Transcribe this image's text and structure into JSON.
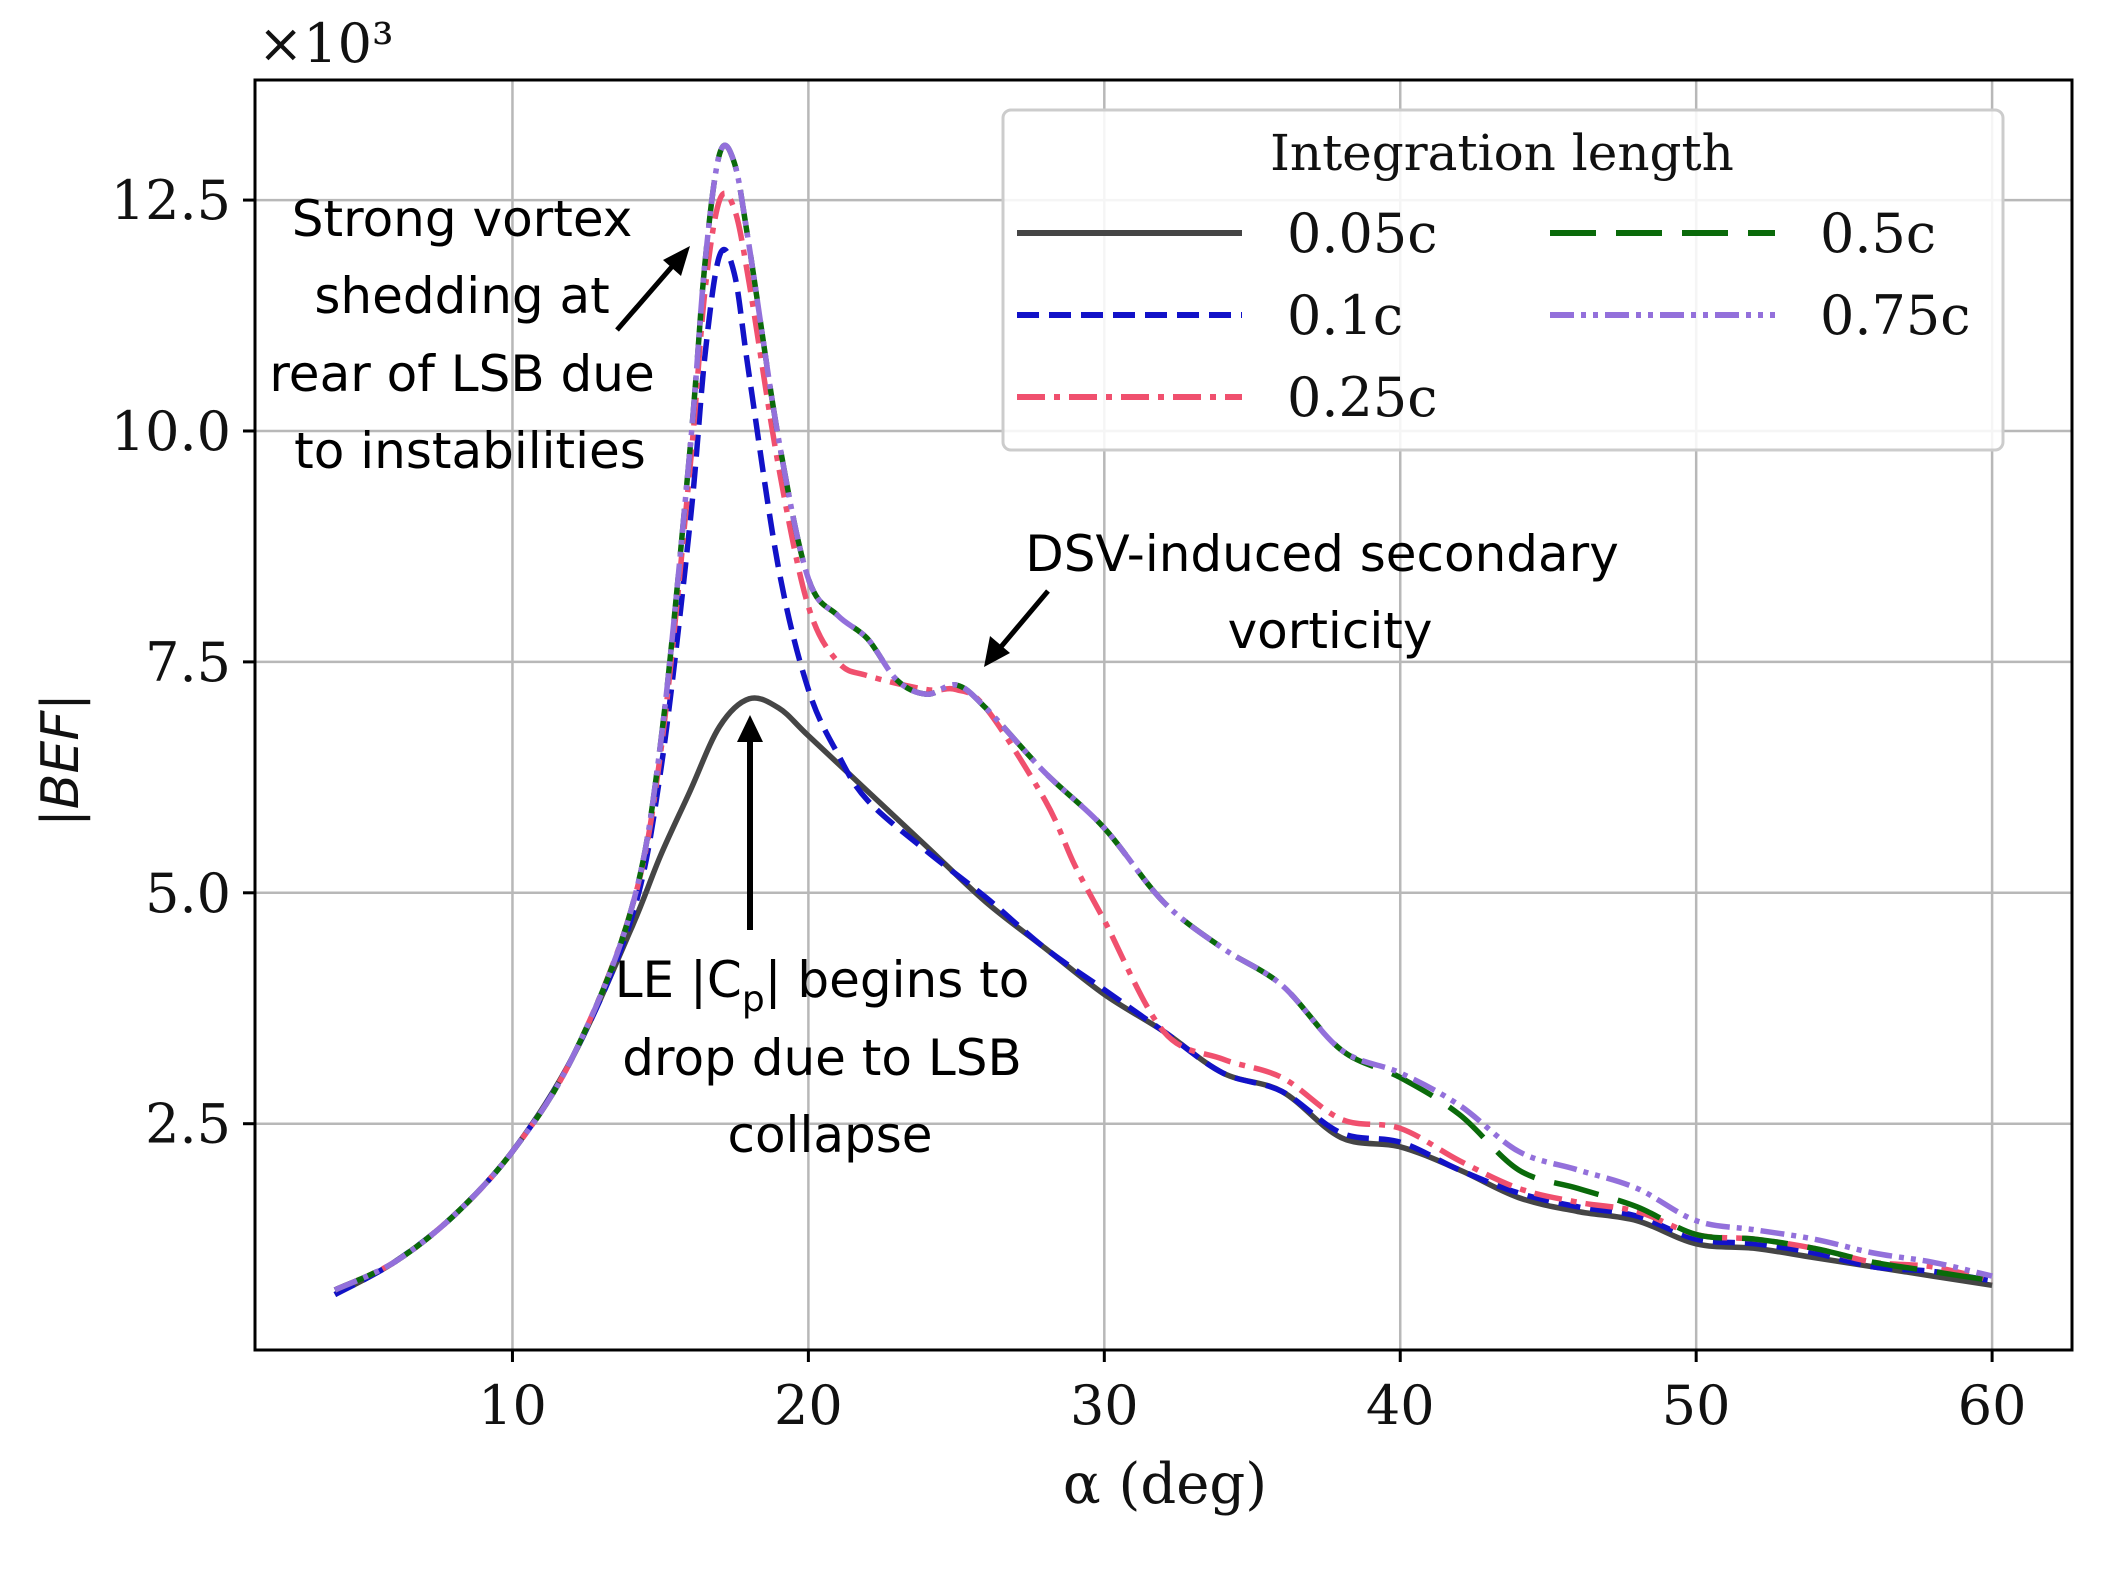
{
  "chart_data": {
    "type": "line",
    "xlabel": "α (deg)",
    "ylabel": "|BEF|",
    "y_multiplier": "×10³",
    "xlim": [
      1.3,
      62.7
    ],
    "ylim": [
      0.05,
      13.8
    ],
    "x_ticks": [
      10,
      20,
      30,
      40,
      50,
      60
    ],
    "x_tick_labels": [
      "10",
      "20",
      "30",
      "40",
      "50",
      "60"
    ],
    "y_ticks": [
      2.5,
      5.0,
      7.5,
      10.0,
      12.5
    ],
    "y_tick_labels": [
      "2.5",
      "5.0",
      "7.5",
      "10.0",
      "12.5"
    ],
    "grid": true,
    "legend": {
      "title": "Integration length",
      "position": "top-right",
      "columns": 2
    },
    "series": [
      {
        "name": "0.05c",
        "color": "#454545",
        "dash": "solid",
        "points": [
          [
            4,
            0.65
          ],
          [
            6,
            1.0
          ],
          [
            8,
            1.5
          ],
          [
            10,
            2.2
          ],
          [
            12,
            3.2
          ],
          [
            14,
            4.6
          ],
          [
            15,
            5.4
          ],
          [
            16,
            6.1
          ],
          [
            17,
            6.8
          ],
          [
            18,
            7.1
          ],
          [
            19,
            7.0
          ],
          [
            20,
            6.7
          ],
          [
            22,
            6.1
          ],
          [
            24,
            5.5
          ],
          [
            26,
            4.9
          ],
          [
            28,
            4.4
          ],
          [
            30,
            3.9
          ],
          [
            32,
            3.5
          ],
          [
            34,
            3.05
          ],
          [
            36,
            2.85
          ],
          [
            38,
            2.35
          ],
          [
            40,
            2.25
          ],
          [
            42,
            2.0
          ],
          [
            44,
            1.7
          ],
          [
            46,
            1.55
          ],
          [
            48,
            1.45
          ],
          [
            50,
            1.2
          ],
          [
            52,
            1.15
          ],
          [
            54,
            1.05
          ],
          [
            56,
            0.95
          ],
          [
            58,
            0.85
          ],
          [
            60,
            0.75
          ]
        ]
      },
      {
        "name": "0.1c",
        "color": "#1212c8",
        "dash": "dashed",
        "points": [
          [
            4,
            0.65
          ],
          [
            6,
            1.0
          ],
          [
            8,
            1.5
          ],
          [
            10,
            2.2
          ],
          [
            12,
            3.2
          ],
          [
            14,
            4.7
          ],
          [
            15,
            6.3
          ],
          [
            16,
            9.0
          ],
          [
            16.5,
            10.8
          ],
          [
            17,
            11.9
          ],
          [
            17.5,
            11.7
          ],
          [
            18,
            10.6
          ],
          [
            19,
            8.5
          ],
          [
            20,
            7.2
          ],
          [
            21,
            6.5
          ],
          [
            22,
            6.0
          ],
          [
            24,
            5.45
          ],
          [
            26,
            4.95
          ],
          [
            28,
            4.4
          ],
          [
            30,
            3.95
          ],
          [
            32,
            3.5
          ],
          [
            34,
            3.05
          ],
          [
            36,
            2.85
          ],
          [
            38,
            2.4
          ],
          [
            40,
            2.3
          ],
          [
            42,
            2.0
          ],
          [
            44,
            1.75
          ],
          [
            46,
            1.6
          ],
          [
            48,
            1.5
          ],
          [
            50,
            1.25
          ],
          [
            52,
            1.2
          ],
          [
            54,
            1.1
          ],
          [
            56,
            0.95
          ],
          [
            58,
            0.9
          ],
          [
            60,
            0.8
          ]
        ]
      },
      {
        "name": "0.25c",
        "color": "#f0506e",
        "dash": "dashdot",
        "points": [
          [
            4,
            0.7
          ],
          [
            6,
            1.0
          ],
          [
            8,
            1.5
          ],
          [
            10,
            2.2
          ],
          [
            12,
            3.2
          ],
          [
            14,
            4.8
          ],
          [
            15,
            6.5
          ],
          [
            16,
            9.6
          ],
          [
            16.5,
            11.5
          ],
          [
            17,
            12.5
          ],
          [
            17.5,
            12.4
          ],
          [
            18,
            11.6
          ],
          [
            19,
            9.6
          ],
          [
            20,
            8.1
          ],
          [
            21,
            7.5
          ],
          [
            22,
            7.35
          ],
          [
            24,
            7.2
          ],
          [
            25,
            7.2
          ],
          [
            26,
            7.0
          ],
          [
            28,
            6.0
          ],
          [
            29,
            5.3
          ],
          [
            30,
            4.7
          ],
          [
            32,
            3.5
          ],
          [
            34,
            3.2
          ],
          [
            36,
            3.0
          ],
          [
            38,
            2.55
          ],
          [
            40,
            2.45
          ],
          [
            42,
            2.1
          ],
          [
            44,
            1.8
          ],
          [
            46,
            1.65
          ],
          [
            48,
            1.55
          ],
          [
            50,
            1.3
          ],
          [
            52,
            1.25
          ],
          [
            54,
            1.15
          ],
          [
            56,
            1.0
          ],
          [
            58,
            0.95
          ],
          [
            60,
            0.8
          ]
        ]
      },
      {
        "name": "0.5c",
        "color": "#0a6a0a",
        "dash": "longdash",
        "points": [
          [
            4,
            0.7
          ],
          [
            6,
            1.0
          ],
          [
            8,
            1.5
          ],
          [
            10,
            2.2
          ],
          [
            12,
            3.2
          ],
          [
            14,
            4.8
          ],
          [
            15,
            6.6
          ],
          [
            16,
            9.8
          ],
          [
            16.5,
            11.8
          ],
          [
            17,
            13.0
          ],
          [
            17.5,
            12.9
          ],
          [
            18,
            12.0
          ],
          [
            19,
            9.9
          ],
          [
            20,
            8.4
          ],
          [
            21,
            8.0
          ],
          [
            22,
            7.75
          ],
          [
            23,
            7.3
          ],
          [
            24,
            7.15
          ],
          [
            25,
            7.25
          ],
          [
            26,
            7.0
          ],
          [
            28,
            6.3
          ],
          [
            30,
            5.7
          ],
          [
            32,
            4.9
          ],
          [
            34,
            4.4
          ],
          [
            36,
            4.0
          ],
          [
            38,
            3.3
          ],
          [
            40,
            3.0
          ],
          [
            42,
            2.6
          ],
          [
            44,
            2.0
          ],
          [
            46,
            1.8
          ],
          [
            48,
            1.6
          ],
          [
            50,
            1.3
          ],
          [
            52,
            1.25
          ],
          [
            54,
            1.15
          ],
          [
            56,
            1.0
          ],
          [
            58,
            0.9
          ],
          [
            60,
            0.8
          ]
        ]
      },
      {
        "name": "0.75c",
        "color": "#9370db",
        "dash": "dashdotdot",
        "points": [
          [
            4,
            0.7
          ],
          [
            6,
            1.0
          ],
          [
            8,
            1.5
          ],
          [
            10,
            2.2
          ],
          [
            12,
            3.2
          ],
          [
            14,
            4.8
          ],
          [
            15,
            6.6
          ],
          [
            16,
            9.8
          ],
          [
            16.5,
            11.8
          ],
          [
            17,
            13.0
          ],
          [
            17.5,
            12.9
          ],
          [
            18,
            12.0
          ],
          [
            19,
            9.9
          ],
          [
            20,
            8.4
          ],
          [
            21,
            8.0
          ],
          [
            22,
            7.75
          ],
          [
            23,
            7.3
          ],
          [
            24,
            7.15
          ],
          [
            25,
            7.25
          ],
          [
            26,
            7.0
          ],
          [
            28,
            6.3
          ],
          [
            30,
            5.7
          ],
          [
            32,
            4.9
          ],
          [
            34,
            4.4
          ],
          [
            36,
            4.0
          ],
          [
            38,
            3.3
          ],
          [
            40,
            3.05
          ],
          [
            42,
            2.7
          ],
          [
            44,
            2.2
          ],
          [
            46,
            2.0
          ],
          [
            48,
            1.8
          ],
          [
            50,
            1.45
          ],
          [
            52,
            1.35
          ],
          [
            54,
            1.25
          ],
          [
            56,
            1.1
          ],
          [
            58,
            1.0
          ],
          [
            60,
            0.85
          ]
        ]
      }
    ],
    "annotations": [
      {
        "lines": [
          "Strong vortex",
          "shedding at",
          "rear of LSB due",
          "to instabilities"
        ],
        "arrow_to": [
          16.3,
          11.5
        ]
      },
      {
        "lines": [
          "DSV-induced secondary",
          "vorticity"
        ],
        "arrow_to": [
          25.3,
          7.25
        ]
      },
      {
        "lines": [
          "LE |C",
          "p",
          "| begins to",
          "drop due to LSB",
          "collapse"
        ],
        "arrow_to": [
          17.8,
          6.95
        ]
      }
    ]
  }
}
